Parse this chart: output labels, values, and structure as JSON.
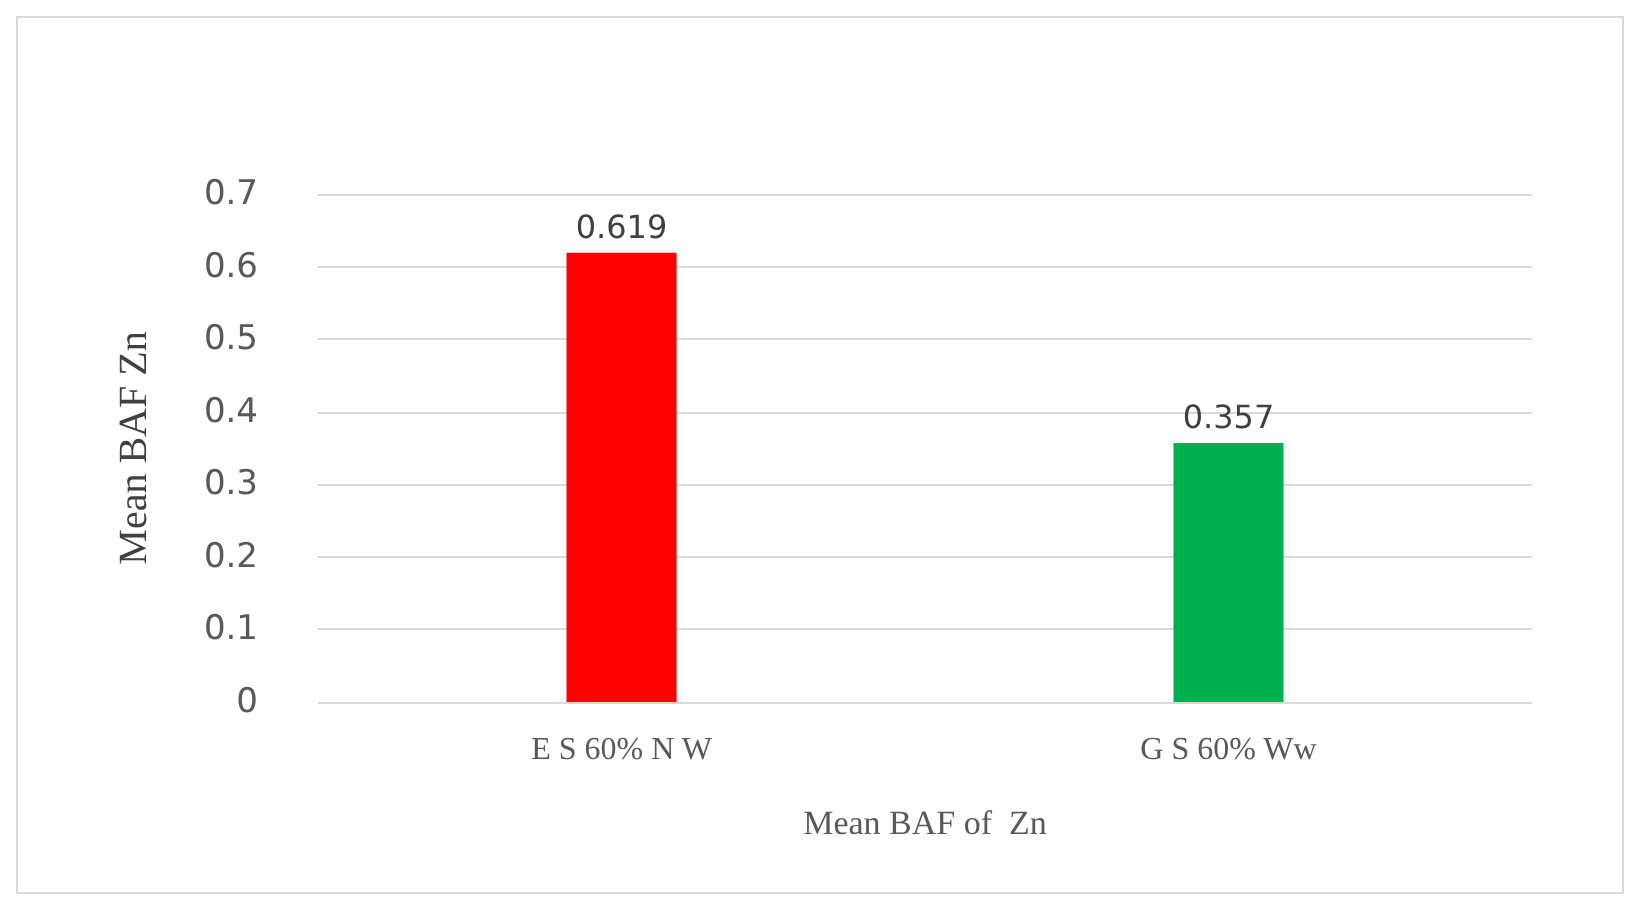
{
  "chart_data": {
    "type": "bar",
    "xlabel": "Mean BAF of  Zn",
    "ylabel": "Mean BAF Zn",
    "categories": [
      "E S 60% N W",
      "G S 60% Ww"
    ],
    "values": [
      0.619,
      0.357
    ],
    "colors": [
      "#ff0000",
      "#00b050"
    ],
    "ylim": [
      0,
      0.7
    ],
    "yticks": [
      0,
      0.1,
      0.2,
      0.3,
      0.4,
      0.5,
      0.6,
      0.7
    ],
    "grid": "y",
    "data_labels": true
  }
}
